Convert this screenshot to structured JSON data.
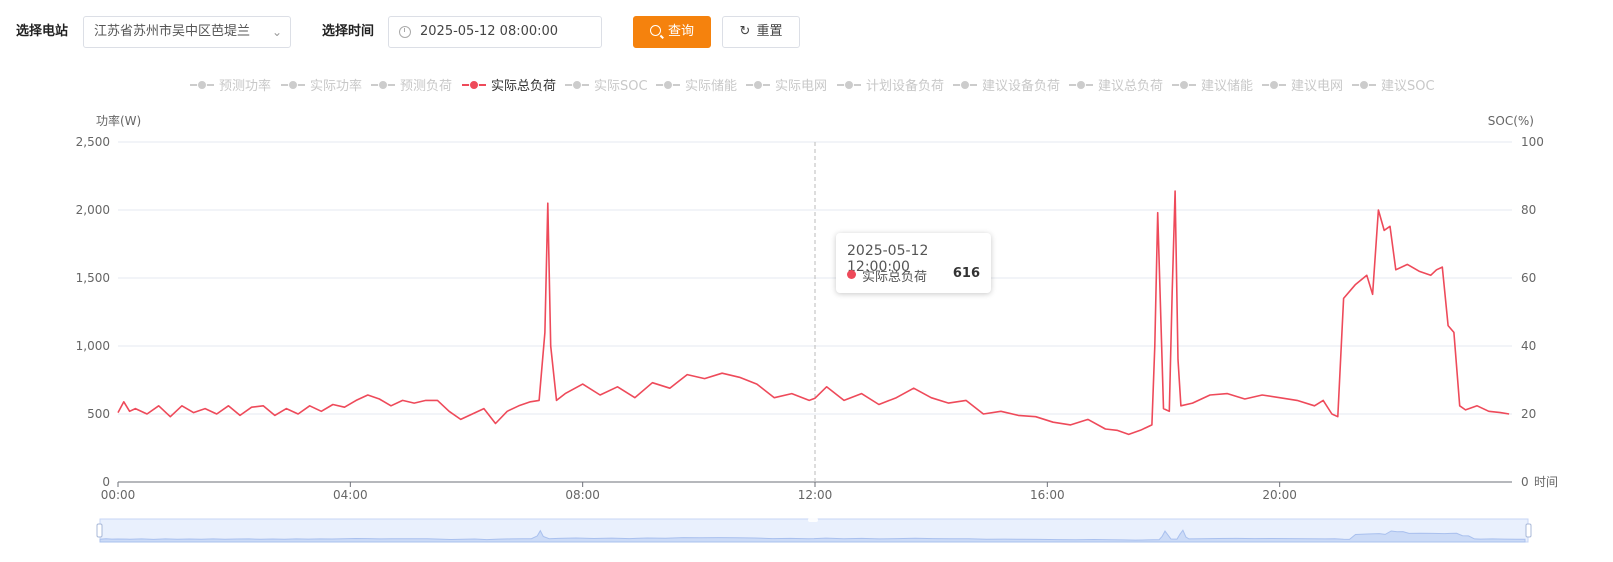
{
  "filters": {
    "station_label": "选择电站",
    "station_value": "江苏省苏州市吴中区芭堤兰",
    "time_label": "选择时间",
    "time_value": "2025-05-12 08:00:00",
    "query_label": "查询",
    "reset_label": "重置"
  },
  "tooltip": {
    "title": "2025-05-12 12:00:00",
    "series": "实际总负荷",
    "value": "616"
  },
  "colors": {
    "accent": "#f5820d",
    "series_active": "#ee4a5a",
    "legend_inactive": "#cccccc",
    "grid": "#e6e9f0",
    "zoom_fill": "#dbe6fb"
  },
  "chart_data": {
    "type": "line",
    "legend": [
      {
        "name": "预测功率",
        "active": false
      },
      {
        "name": "实际功率",
        "active": false
      },
      {
        "name": "预测负荷",
        "active": false
      },
      {
        "name": "实际总负荷",
        "active": true
      },
      {
        "name": "实际SOC",
        "active": false
      },
      {
        "name": "实际储能",
        "active": false
      },
      {
        "name": "实际电网",
        "active": false
      },
      {
        "name": "计划设备负荷",
        "active": false
      },
      {
        "name": "建议设备负荷",
        "active": false
      },
      {
        "name": "建议总负荷",
        "active": false
      },
      {
        "name": "建议储能",
        "active": false
      },
      {
        "name": "建议电网",
        "active": false
      },
      {
        "name": "建议SOC",
        "active": false
      }
    ],
    "y_left_label": "功率(W)",
    "y_right_label": "SOC(%)",
    "x_axis_name": "时间",
    "ylim_left": [
      0,
      2500
    ],
    "ylim_right": [
      0,
      100
    ],
    "y_left_ticks": [
      "0",
      "500",
      "1,000",
      "1,500",
      "2,000",
      "2,500"
    ],
    "y_right_ticks": [
      "0",
      "20",
      "40",
      "60",
      "80",
      "100"
    ],
    "x_ticks": [
      "00:00",
      "04:00",
      "08:00",
      "12:00",
      "16:00",
      "20:00"
    ],
    "xlim_hours": [
      0,
      24
    ],
    "grid": true,
    "legend_position": "top-center",
    "series": [
      {
        "name": "实际总负荷",
        "x_hours": [
          0,
          0.1,
          0.2,
          0.3,
          0.5,
          0.7,
          0.9,
          1.1,
          1.3,
          1.5,
          1.7,
          1.9,
          2.1,
          2.3,
          2.5,
          2.7,
          2.9,
          3.1,
          3.3,
          3.5,
          3.7,
          3.9,
          4.1,
          4.3,
          4.5,
          4.7,
          4.9,
          5.1,
          5.3,
          5.5,
          5.7,
          5.9,
          6.1,
          6.3,
          6.5,
          6.7,
          6.9,
          7.1,
          7.25,
          7.35,
          7.4,
          7.45,
          7.55,
          7.7,
          8.0,
          8.3,
          8.6,
          8.9,
          9.2,
          9.5,
          9.8,
          10.1,
          10.4,
          10.7,
          11.0,
          11.3,
          11.6,
          11.9,
          12.0,
          12.2,
          12.5,
          12.8,
          13.1,
          13.4,
          13.7,
          14.0,
          14.3,
          14.6,
          14.9,
          15.2,
          15.5,
          15.8,
          16.1,
          16.4,
          16.7,
          17.0,
          17.2,
          17.4,
          17.6,
          17.7,
          17.8,
          17.85,
          17.9,
          18.0,
          18.1,
          18.15,
          18.2,
          18.25,
          18.3,
          18.5,
          18.8,
          19.1,
          19.4,
          19.7,
          20.0,
          20.3,
          20.6,
          20.75,
          20.9,
          21.0,
          21.1,
          21.3,
          21.5,
          21.6,
          21.7,
          21.8,
          21.9,
          22.0,
          22.2,
          22.4,
          22.6,
          22.7,
          22.8,
          22.9,
          23.0,
          23.1,
          23.2,
          23.4,
          23.6,
          23.8,
          23.95
        ],
        "y": [
          510,
          590,
          520,
          540,
          500,
          560,
          480,
          560,
          510,
          540,
          500,
          560,
          490,
          550,
          560,
          490,
          540,
          500,
          560,
          520,
          570,
          550,
          600,
          640,
          610,
          560,
          600,
          580,
          600,
          600,
          520,
          460,
          500,
          540,
          430,
          520,
          560,
          590,
          600,
          1100,
          2050,
          1000,
          600,
          650,
          720,
          640,
          700,
          620,
          730,
          690,
          790,
          760,
          800,
          770,
          720,
          620,
          650,
          600,
          616,
          700,
          600,
          650,
          570,
          620,
          690,
          620,
          580,
          600,
          500,
          520,
          490,
          480,
          440,
          420,
          460,
          390,
          380,
          350,
          380,
          400,
          420,
          1000,
          1980,
          540,
          520,
          1400,
          2140,
          900,
          560,
          580,
          640,
          650,
          610,
          640,
          620,
          600,
          560,
          600,
          500,
          480,
          1350,
          1450,
          1520,
          1380,
          2000,
          1850,
          1880,
          1560,
          1600,
          1550,
          1520,
          1560,
          1580,
          1150,
          1100,
          560,
          530,
          560,
          520,
          510,
          500
        ]
      }
    ]
  }
}
